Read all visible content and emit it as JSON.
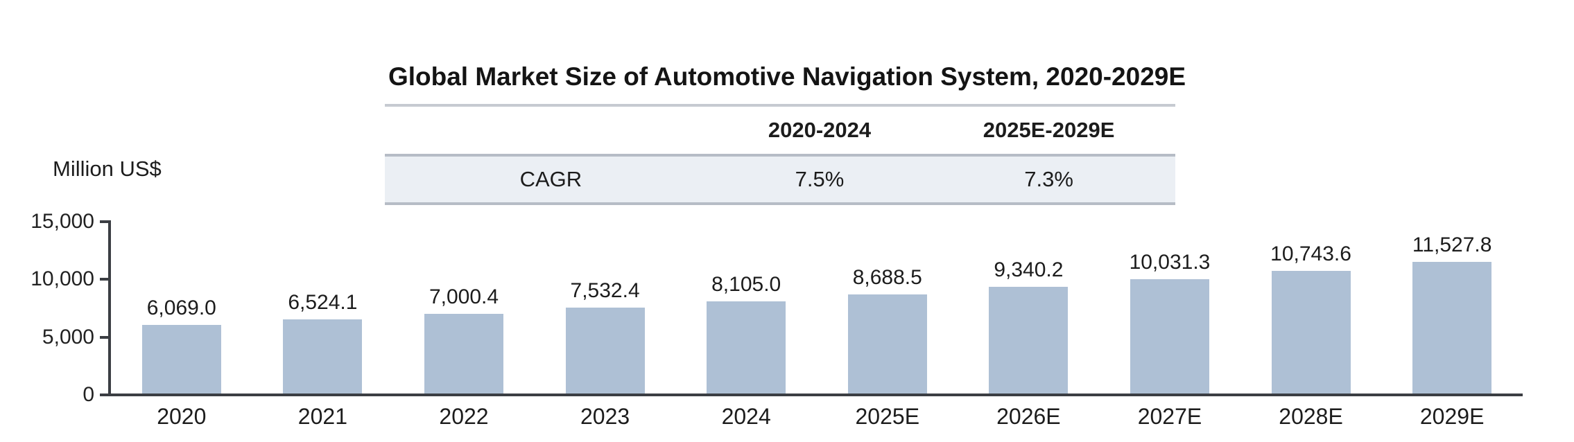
{
  "title": "Global Market Size of Automotive Navigation System, 2020-2029E",
  "y_axis_unit": "Million US$",
  "cagr_table": {
    "columns": [
      "",
      "2020-2024",
      "2025E-2029E"
    ],
    "row_label": "CAGR",
    "values": [
      "7.5%",
      "7.3%"
    ]
  },
  "chart_data": {
    "type": "bar",
    "title": "Global Market Size of Automotive Navigation System, 2020-2029E",
    "categories": [
      "2020",
      "2021",
      "2022",
      "2023",
      "2024",
      "2025E",
      "2026E",
      "2027E",
      "2028E",
      "2029E"
    ],
    "values": [
      6069.0,
      6524.1,
      7000.4,
      7532.4,
      8105.0,
      8688.5,
      9340.2,
      10031.3,
      10743.6,
      11527.8
    ],
    "value_labels": [
      "6,069.0",
      "6,524.1",
      "7,000.4",
      "7,532.4",
      "8,105.0",
      "8,688.5",
      "9,340.2",
      "10,031.3",
      "10,743.6",
      "11,527.8"
    ],
    "xlabel": "",
    "ylabel": "Million US$",
    "ylim": [
      0,
      15000
    ],
    "yticks": [
      0,
      5000,
      10000,
      15000
    ],
    "ytick_labels": [
      "0",
      "5,000",
      "10,000",
      "15,000"
    ],
    "grid": false,
    "legend": false,
    "bar_color": "#aec0d5",
    "axis_color": "#3b3e43"
  },
  "colors": {
    "bar_fill": "#aec0d5",
    "cagr_row_background": "#ebeff4",
    "table_line": "#b6bcc6",
    "axis": "#3b3e43",
    "background": "#ffffff"
  }
}
